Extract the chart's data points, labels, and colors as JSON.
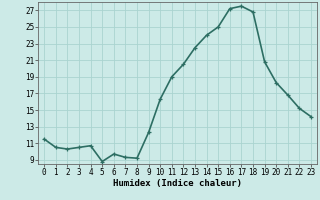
{
  "x": [
    0,
    1,
    2,
    3,
    4,
    5,
    6,
    7,
    8,
    9,
    10,
    11,
    12,
    13,
    14,
    15,
    16,
    17,
    18,
    19,
    20,
    21,
    22,
    23
  ],
  "y": [
    11.5,
    10.5,
    10.3,
    10.5,
    10.7,
    8.8,
    9.7,
    9.3,
    9.2,
    12.3,
    16.3,
    19.0,
    20.5,
    22.5,
    24.0,
    25.0,
    27.2,
    27.5,
    26.8,
    20.8,
    18.3,
    16.8,
    15.2,
    14.2
  ],
  "line_color": "#2d6e63",
  "marker": "+",
  "marker_size": 3,
  "background_color": "#cceae7",
  "grid_color": "#aad4d0",
  "xlabel": "Humidex (Indice chaleur)",
  "xlim": [
    -0.5,
    23.5
  ],
  "ylim": [
    8.5,
    28.0
  ],
  "yticks": [
    9,
    11,
    13,
    15,
    17,
    19,
    21,
    23,
    25,
    27
  ],
  "xtick_labels": [
    "0",
    "1",
    "2",
    "3",
    "4",
    "5",
    "6",
    "7",
    "8",
    "9",
    "10",
    "11",
    "12",
    "13",
    "14",
    "15",
    "16",
    "17",
    "18",
    "19",
    "20",
    "21",
    "22",
    "23"
  ],
  "line_width": 1.2,
  "tick_fontsize": 5.5,
  "label_fontsize": 6.5
}
